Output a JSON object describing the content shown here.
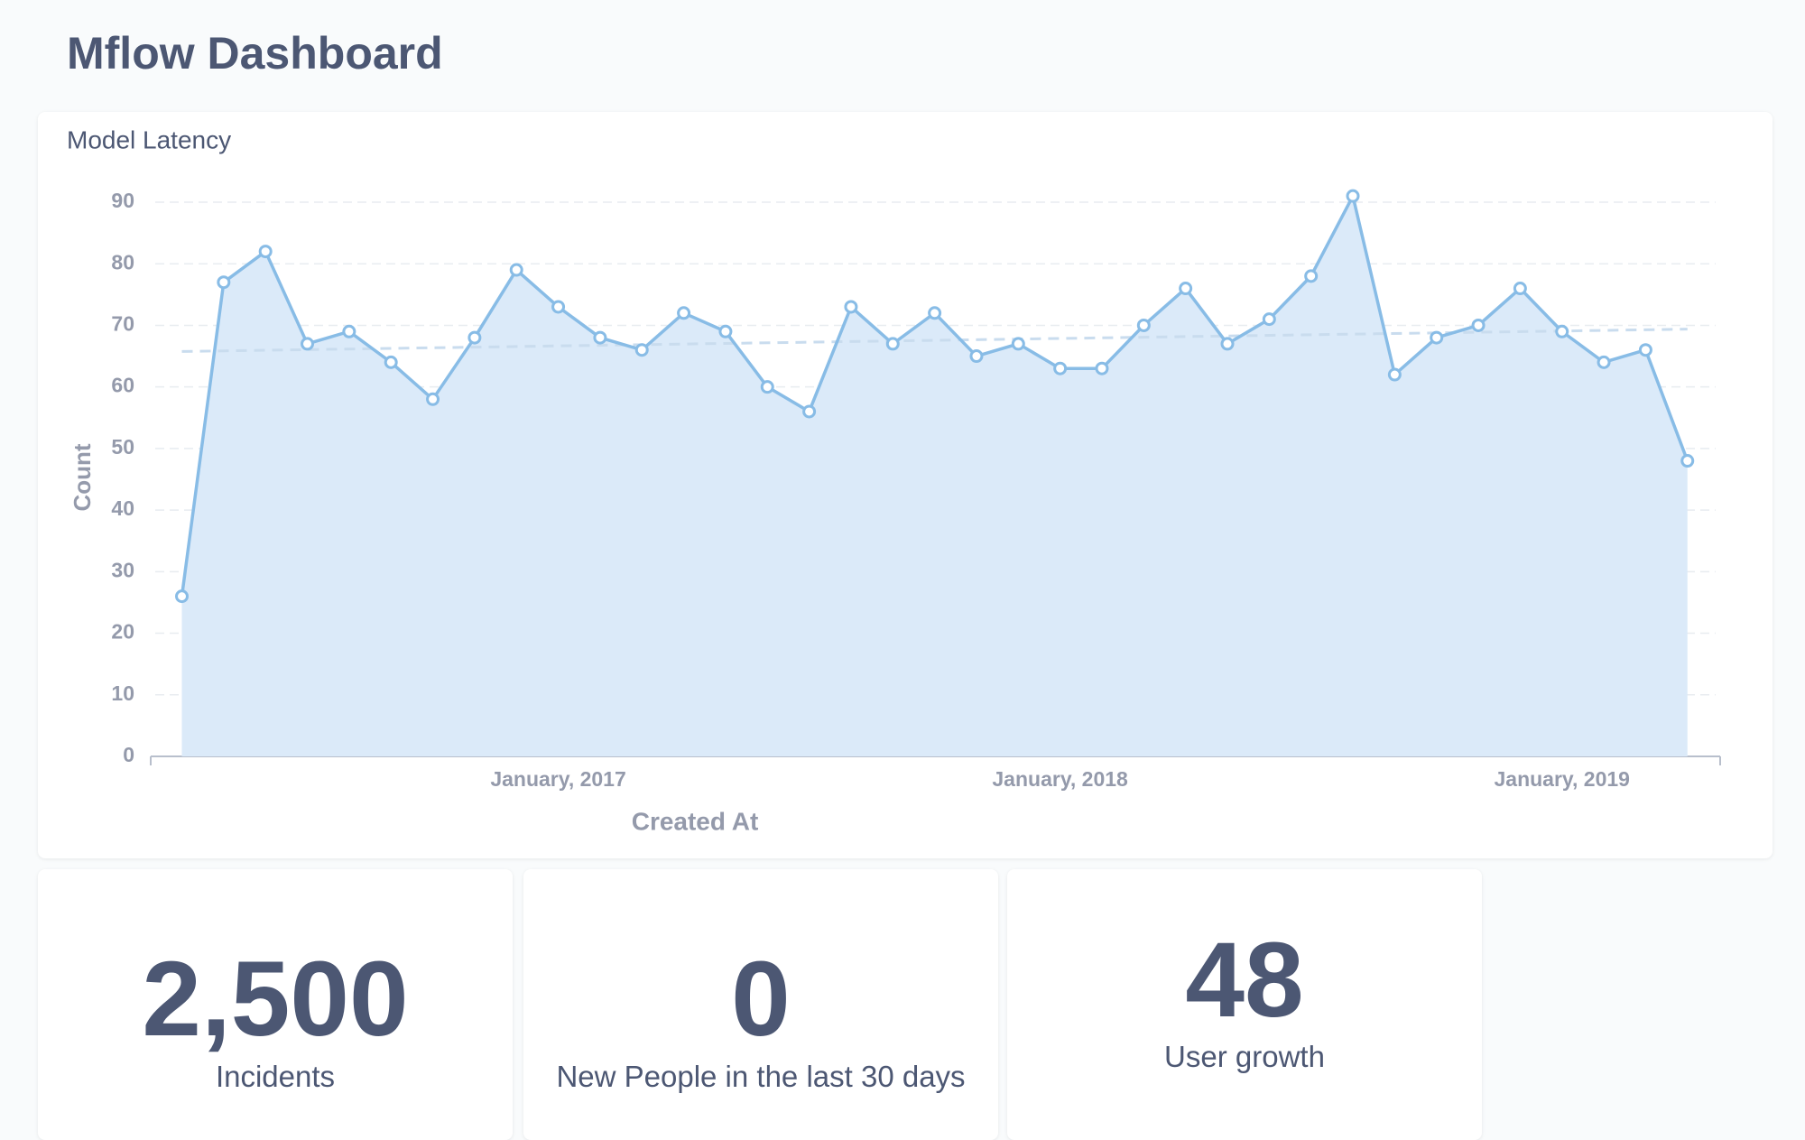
{
  "header": {
    "title": "Mflow Dashboard"
  },
  "chart_data": {
    "type": "area",
    "title": "Model Latency",
    "x_label": "Created At",
    "y_label": "Count",
    "x": [
      "2016-04",
      "2016-05",
      "2016-06",
      "2016-07",
      "2016-08",
      "2016-09",
      "2016-10",
      "2016-11",
      "2016-12",
      "2017-01",
      "2017-02",
      "2017-03",
      "2017-04",
      "2017-05",
      "2017-06",
      "2017-07",
      "2017-08",
      "2017-09",
      "2017-10",
      "2017-11",
      "2017-12",
      "2018-01",
      "2018-02",
      "2018-03",
      "2018-04",
      "2018-05",
      "2018-06",
      "2018-07",
      "2018-08",
      "2018-09",
      "2018-10",
      "2018-11",
      "2018-12",
      "2019-01",
      "2019-02",
      "2019-03",
      "2019-04"
    ],
    "series": [
      {
        "name": "Count",
        "color": "#88bce6",
        "values": [
          26,
          77,
          82,
          67,
          69,
          64,
          58,
          68,
          79,
          73,
          68,
          66,
          72,
          69,
          60,
          56,
          73,
          67,
          72,
          65,
          67,
          63,
          63,
          70,
          76,
          67,
          71,
          78,
          91,
          62,
          68,
          70,
          76,
          69,
          64,
          66,
          48
        ]
      }
    ],
    "xticks": [
      {
        "value": "2017-01",
        "label": "January, 2017"
      },
      {
        "value": "2018-01",
        "label": "January, 2018"
      },
      {
        "value": "2019-01",
        "label": "January, 2019"
      }
    ],
    "ylim": [
      0,
      90
    ],
    "yticks": [
      0,
      10,
      20,
      30,
      40,
      50,
      60,
      70,
      80,
      90
    ],
    "grid": true,
    "trend_line": true
  },
  "cards": [
    {
      "value": "2,500",
      "label": "Incidents"
    },
    {
      "value": "0",
      "label": "New People in the last 30 days"
    },
    {
      "value": "48",
      "label": "User growth"
    }
  ]
}
